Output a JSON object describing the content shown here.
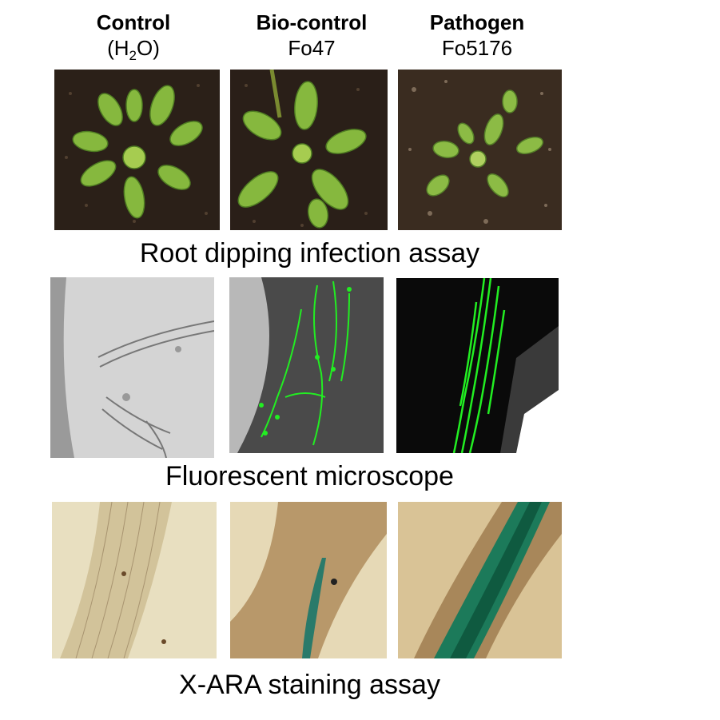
{
  "columns": [
    {
      "title": "Control",
      "subtitle_pre": "(H",
      "subtitle_sub": "2",
      "subtitle_post": "O)"
    },
    {
      "title": "Bio-control",
      "subtitle": "Fo47"
    },
    {
      "title": "Pathogen",
      "subtitle": "Fo5176"
    }
  ],
  "rows": [
    {
      "label": "Root dipping infection assay"
    },
    {
      "label": "Fluorescent microscope"
    },
    {
      "label": "X-ARA staining assay"
    }
  ],
  "colors": {
    "soil": "#2b2018",
    "leaf": "#7fb23a",
    "leaf_dark": "#4f7d22",
    "gfp": "#22ee22",
    "stain_bg": "#e4d6b0",
    "xgluc": "#1c7a5a"
  }
}
